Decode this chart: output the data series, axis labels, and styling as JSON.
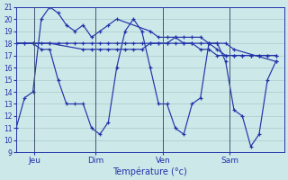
{
  "background_color": "#cce8e8",
  "grid_color": "#b0d0d0",
  "line_color": "#2233aa",
  "xlabel": "Température (°c)",
  "ylim": [
    9,
    21
  ],
  "yticks": [
    9,
    10,
    11,
    12,
    13,
    14,
    15,
    16,
    17,
    18,
    19,
    20,
    21
  ],
  "day_labels": [
    "Jeu",
    "Dim",
    "Ven",
    "Sam"
  ],
  "xlim": [
    0,
    32
  ],
  "series": [
    {
      "x": [
        0,
        1,
        2,
        3,
        4,
        5,
        6,
        7,
        8,
        9,
        10,
        11,
        12,
        16,
        17,
        18,
        19,
        20,
        21,
        22,
        23,
        24,
        25,
        26,
        31
      ],
      "y": [
        11,
        13.5,
        14,
        20,
        21,
        20.5,
        19.5,
        19,
        19.5,
        18.5,
        19,
        19.5,
        20,
        19,
        18.5,
        18.5,
        18.5,
        18.5,
        18.5,
        18.5,
        18,
        18,
        18,
        17.5,
        16.5
      ]
    },
    {
      "x": [
        0,
        1,
        2,
        3,
        4,
        5,
        6,
        7,
        8,
        9,
        10,
        11,
        12,
        13,
        14,
        15,
        16,
        17,
        18,
        19,
        20,
        21,
        22,
        23,
        24,
        25,
        26,
        27,
        28,
        29,
        30,
        31
      ],
      "y": [
        18,
        18,
        18,
        18,
        18,
        18,
        18,
        18,
        18,
        18,
        18,
        18,
        18,
        18,
        18,
        18,
        18,
        18,
        18,
        18,
        18,
        18,
        18,
        18,
        17.5,
        17,
        17,
        17,
        17,
        17,
        17,
        17
      ]
    },
    {
      "x": [
        0,
        1,
        2,
        3,
        4,
        5,
        6,
        7,
        8,
        9,
        10,
        11,
        12,
        13,
        14,
        15,
        16,
        17,
        18,
        19,
        20,
        21,
        22,
        23,
        24,
        25,
        26,
        27,
        28,
        29,
        30,
        31
      ],
      "y": [
        18,
        18,
        18,
        17.5,
        17.5,
        15,
        13,
        13,
        13,
        11,
        10.5,
        11.5,
        16,
        19,
        20,
        19,
        16,
        13,
        13,
        11,
        10.5,
        13,
        13.5,
        18,
        18,
        16.5,
        12.5,
        12,
        9.5,
        10.5,
        15,
        16.5
      ]
    },
    {
      "x": [
        0,
        4,
        8,
        9,
        10,
        11,
        12,
        13,
        14,
        15,
        16,
        17,
        18,
        19,
        20,
        21,
        22,
        23,
        24,
        25,
        26,
        27,
        28,
        29,
        30,
        31
      ],
      "y": [
        18,
        18,
        17.5,
        17.5,
        17.5,
        17.5,
        17.5,
        17.5,
        17.5,
        17.5,
        18,
        18,
        18,
        18.5,
        18,
        18,
        17.5,
        17.5,
        17,
        17,
        17,
        17,
        17,
        17,
        17,
        17
      ]
    }
  ],
  "vlines": [
    2.2,
    9.5,
    17.5,
    25.5
  ]
}
